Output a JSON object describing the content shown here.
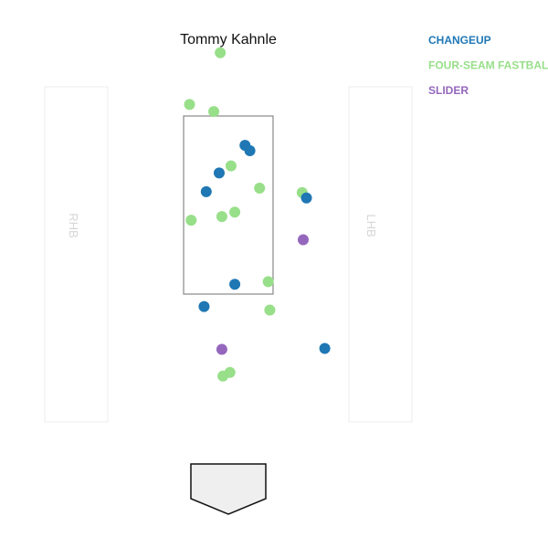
{
  "chart_data": {
    "type": "scatter",
    "title": "Tommy Kahnle",
    "batter_labels": {
      "left_box": "RHB",
      "right_box": "LHB"
    },
    "xlim": [
      -2.5,
      2.5
    ],
    "ylim": [
      0,
      5
    ],
    "strike_zone": {
      "x": [
        -0.83,
        0.83
      ],
      "y": [
        1.6,
        3.6
      ]
    },
    "legend": {
      "position": "top-right"
    },
    "series": [
      {
        "name": "CHANGEUP",
        "color": "#1f77b4",
        "points": [
          {
            "x": 0.31,
            "y": 3.27
          },
          {
            "x": 0.4,
            "y": 3.21
          },
          {
            "x": -0.17,
            "y": 2.96
          },
          {
            "x": -0.41,
            "y": 2.75
          },
          {
            "x": 1.45,
            "y": 2.68
          },
          {
            "x": 0.12,
            "y": 1.71
          },
          {
            "x": -0.45,
            "y": 1.46
          },
          {
            "x": 1.79,
            "y": 0.99
          }
        ]
      },
      {
        "name": "FOUR-SEAM FASTBALL",
        "color": "#98df8a",
        "points": [
          {
            "x": -0.15,
            "y": 4.31
          },
          {
            "x": -0.72,
            "y": 3.73
          },
          {
            "x": -0.27,
            "y": 3.65
          },
          {
            "x": 0.05,
            "y": 3.04
          },
          {
            "x": 0.58,
            "y": 2.79
          },
          {
            "x": 1.37,
            "y": 2.74
          },
          {
            "x": 0.12,
            "y": 2.52
          },
          {
            "x": -0.12,
            "y": 2.47
          },
          {
            "x": -0.69,
            "y": 2.43
          },
          {
            "x": 0.74,
            "y": 1.74
          },
          {
            "x": 0.77,
            "y": 1.42
          },
          {
            "x": 0.03,
            "y": 0.72
          },
          {
            "x": -0.1,
            "y": 0.68
          }
        ]
      },
      {
        "name": "SLIDER",
        "color": "#9467bd",
        "points": [
          {
            "x": 1.39,
            "y": 2.21
          },
          {
            "x": -0.12,
            "y": 0.98
          }
        ]
      }
    ]
  }
}
